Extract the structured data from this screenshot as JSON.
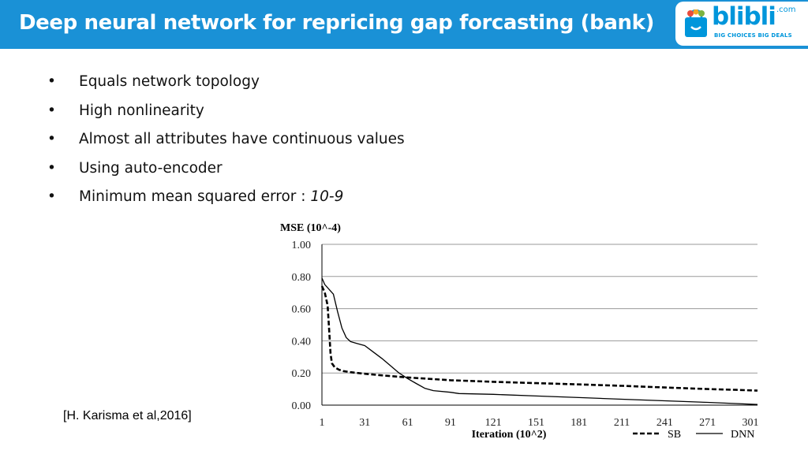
{
  "header": {
    "title": "Deep neural network for repricing gap forcasting (bank)",
    "bg_color": "#1a91d6",
    "logo": {
      "wordmark": "blibli",
      "domain": ".com",
      "tagline": "BIG CHOICES   BIG DEALS",
      "color": "#0096db"
    }
  },
  "bullets": [
    {
      "text": "Equals network topology"
    },
    {
      "text": "High nonlinearity"
    },
    {
      "text": "Almost all attributes have continuous values"
    },
    {
      "text": "Using auto-encoder"
    },
    {
      "text": "Minimum mean squared error : ",
      "value": "10-9"
    }
  ],
  "citation": "[H. Karisma et al,2016]",
  "chart_data": {
    "type": "line",
    "title": "",
    "ylabel": "MSE (10^-4)",
    "xlabel": "Iteration (10^2)",
    "ylim": [
      0,
      1
    ],
    "xlim": [
      1,
      306
    ],
    "y_ticks": [
      "0.00",
      "0.20",
      "0.40",
      "0.60",
      "0.80",
      "1.00"
    ],
    "x_ticks": [
      "1",
      "31",
      "61",
      "91",
      "121",
      "151",
      "181",
      "211",
      "241",
      "271",
      "301"
    ],
    "grid": true,
    "legend_position": "bottom-right",
    "series": [
      {
        "name": "SB",
        "style": "dashed",
        "x": [
          1,
          3,
          5,
          6,
          7,
          8,
          10,
          13,
          16,
          21,
          31,
          46,
          61,
          91,
          121,
          151,
          181,
          211,
          241,
          271,
          291,
          306
        ],
        "y": [
          0.74,
          0.7,
          0.62,
          0.48,
          0.32,
          0.26,
          0.235,
          0.22,
          0.212,
          0.205,
          0.195,
          0.183,
          0.172,
          0.155,
          0.145,
          0.137,
          0.129,
          0.12,
          0.11,
          0.1,
          0.095,
          0.09
        ]
      },
      {
        "name": "DNN",
        "style": "solid",
        "x": [
          1,
          3,
          6,
          9,
          12,
          15,
          18,
          21,
          25,
          31,
          37,
          43,
          49,
          55,
          61,
          67,
          73,
          79,
          91,
          97,
          121,
          151,
          181,
          211,
          241,
          271,
          291,
          306
        ],
        "y": [
          0.79,
          0.75,
          0.72,
          0.69,
          0.58,
          0.48,
          0.42,
          0.395,
          0.385,
          0.37,
          0.33,
          0.29,
          0.245,
          0.2,
          0.165,
          0.135,
          0.105,
          0.09,
          0.08,
          0.072,
          0.067,
          0.057,
          0.047,
          0.037,
          0.027,
          0.017,
          0.01,
          0.004
        ]
      }
    ]
  }
}
